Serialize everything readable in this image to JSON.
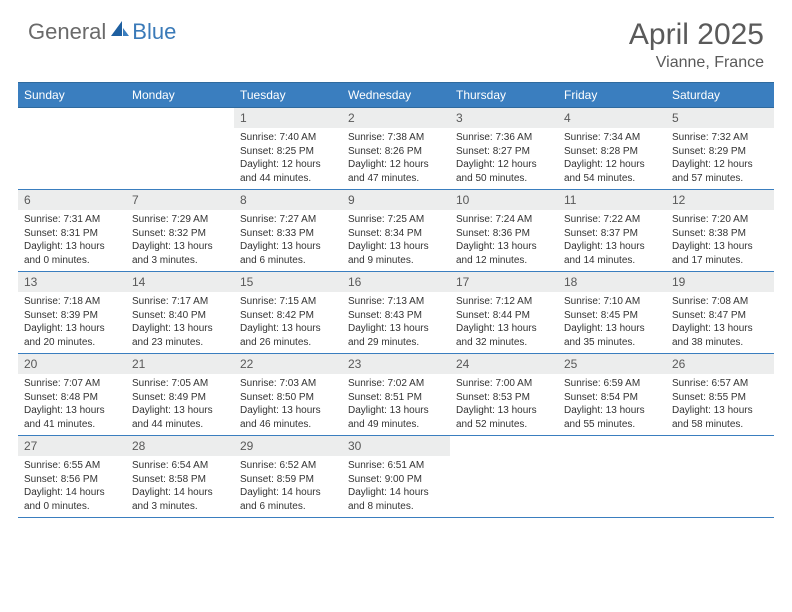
{
  "brand": {
    "part1": "General",
    "part2": "Blue"
  },
  "title": "April 2025",
  "location": "Vianne, France",
  "colors": {
    "header_bg": "#3a7ebf",
    "header_text": "#ffffff",
    "daynum_bg": "#eceded",
    "daynum_text": "#595959",
    "body_text": "#333333",
    "border": "#3a7ebf",
    "logo_gray": "#6a6a6a",
    "logo_blue": "#3a7ab8"
  },
  "weekdays": [
    "Sunday",
    "Monday",
    "Tuesday",
    "Wednesday",
    "Thursday",
    "Friday",
    "Saturday"
  ],
  "weeks": [
    [
      null,
      null,
      {
        "d": "1",
        "sr": "Sunrise: 7:40 AM",
        "ss": "Sunset: 8:25 PM",
        "dl1": "Daylight: 12 hours",
        "dl2": "and 44 minutes."
      },
      {
        "d": "2",
        "sr": "Sunrise: 7:38 AM",
        "ss": "Sunset: 8:26 PM",
        "dl1": "Daylight: 12 hours",
        "dl2": "and 47 minutes."
      },
      {
        "d": "3",
        "sr": "Sunrise: 7:36 AM",
        "ss": "Sunset: 8:27 PM",
        "dl1": "Daylight: 12 hours",
        "dl2": "and 50 minutes."
      },
      {
        "d": "4",
        "sr": "Sunrise: 7:34 AM",
        "ss": "Sunset: 8:28 PM",
        "dl1": "Daylight: 12 hours",
        "dl2": "and 54 minutes."
      },
      {
        "d": "5",
        "sr": "Sunrise: 7:32 AM",
        "ss": "Sunset: 8:29 PM",
        "dl1": "Daylight: 12 hours",
        "dl2": "and 57 minutes."
      }
    ],
    [
      {
        "d": "6",
        "sr": "Sunrise: 7:31 AM",
        "ss": "Sunset: 8:31 PM",
        "dl1": "Daylight: 13 hours",
        "dl2": "and 0 minutes."
      },
      {
        "d": "7",
        "sr": "Sunrise: 7:29 AM",
        "ss": "Sunset: 8:32 PM",
        "dl1": "Daylight: 13 hours",
        "dl2": "and 3 minutes."
      },
      {
        "d": "8",
        "sr": "Sunrise: 7:27 AM",
        "ss": "Sunset: 8:33 PM",
        "dl1": "Daylight: 13 hours",
        "dl2": "and 6 minutes."
      },
      {
        "d": "9",
        "sr": "Sunrise: 7:25 AM",
        "ss": "Sunset: 8:34 PM",
        "dl1": "Daylight: 13 hours",
        "dl2": "and 9 minutes."
      },
      {
        "d": "10",
        "sr": "Sunrise: 7:24 AM",
        "ss": "Sunset: 8:36 PM",
        "dl1": "Daylight: 13 hours",
        "dl2": "and 12 minutes."
      },
      {
        "d": "11",
        "sr": "Sunrise: 7:22 AM",
        "ss": "Sunset: 8:37 PM",
        "dl1": "Daylight: 13 hours",
        "dl2": "and 14 minutes."
      },
      {
        "d": "12",
        "sr": "Sunrise: 7:20 AM",
        "ss": "Sunset: 8:38 PM",
        "dl1": "Daylight: 13 hours",
        "dl2": "and 17 minutes."
      }
    ],
    [
      {
        "d": "13",
        "sr": "Sunrise: 7:18 AM",
        "ss": "Sunset: 8:39 PM",
        "dl1": "Daylight: 13 hours",
        "dl2": "and 20 minutes."
      },
      {
        "d": "14",
        "sr": "Sunrise: 7:17 AM",
        "ss": "Sunset: 8:40 PM",
        "dl1": "Daylight: 13 hours",
        "dl2": "and 23 minutes."
      },
      {
        "d": "15",
        "sr": "Sunrise: 7:15 AM",
        "ss": "Sunset: 8:42 PM",
        "dl1": "Daylight: 13 hours",
        "dl2": "and 26 minutes."
      },
      {
        "d": "16",
        "sr": "Sunrise: 7:13 AM",
        "ss": "Sunset: 8:43 PM",
        "dl1": "Daylight: 13 hours",
        "dl2": "and 29 minutes."
      },
      {
        "d": "17",
        "sr": "Sunrise: 7:12 AM",
        "ss": "Sunset: 8:44 PM",
        "dl1": "Daylight: 13 hours",
        "dl2": "and 32 minutes."
      },
      {
        "d": "18",
        "sr": "Sunrise: 7:10 AM",
        "ss": "Sunset: 8:45 PM",
        "dl1": "Daylight: 13 hours",
        "dl2": "and 35 minutes."
      },
      {
        "d": "19",
        "sr": "Sunrise: 7:08 AM",
        "ss": "Sunset: 8:47 PM",
        "dl1": "Daylight: 13 hours",
        "dl2": "and 38 minutes."
      }
    ],
    [
      {
        "d": "20",
        "sr": "Sunrise: 7:07 AM",
        "ss": "Sunset: 8:48 PM",
        "dl1": "Daylight: 13 hours",
        "dl2": "and 41 minutes."
      },
      {
        "d": "21",
        "sr": "Sunrise: 7:05 AM",
        "ss": "Sunset: 8:49 PM",
        "dl1": "Daylight: 13 hours",
        "dl2": "and 44 minutes."
      },
      {
        "d": "22",
        "sr": "Sunrise: 7:03 AM",
        "ss": "Sunset: 8:50 PM",
        "dl1": "Daylight: 13 hours",
        "dl2": "and 46 minutes."
      },
      {
        "d": "23",
        "sr": "Sunrise: 7:02 AM",
        "ss": "Sunset: 8:51 PM",
        "dl1": "Daylight: 13 hours",
        "dl2": "and 49 minutes."
      },
      {
        "d": "24",
        "sr": "Sunrise: 7:00 AM",
        "ss": "Sunset: 8:53 PM",
        "dl1": "Daylight: 13 hours",
        "dl2": "and 52 minutes."
      },
      {
        "d": "25",
        "sr": "Sunrise: 6:59 AM",
        "ss": "Sunset: 8:54 PM",
        "dl1": "Daylight: 13 hours",
        "dl2": "and 55 minutes."
      },
      {
        "d": "26",
        "sr": "Sunrise: 6:57 AM",
        "ss": "Sunset: 8:55 PM",
        "dl1": "Daylight: 13 hours",
        "dl2": "and 58 minutes."
      }
    ],
    [
      {
        "d": "27",
        "sr": "Sunrise: 6:55 AM",
        "ss": "Sunset: 8:56 PM",
        "dl1": "Daylight: 14 hours",
        "dl2": "and 0 minutes."
      },
      {
        "d": "28",
        "sr": "Sunrise: 6:54 AM",
        "ss": "Sunset: 8:58 PM",
        "dl1": "Daylight: 14 hours",
        "dl2": "and 3 minutes."
      },
      {
        "d": "29",
        "sr": "Sunrise: 6:52 AM",
        "ss": "Sunset: 8:59 PM",
        "dl1": "Daylight: 14 hours",
        "dl2": "and 6 minutes."
      },
      {
        "d": "30",
        "sr": "Sunrise: 6:51 AM",
        "ss": "Sunset: 9:00 PM",
        "dl1": "Daylight: 14 hours",
        "dl2": "and 8 minutes."
      },
      null,
      null,
      null
    ]
  ]
}
